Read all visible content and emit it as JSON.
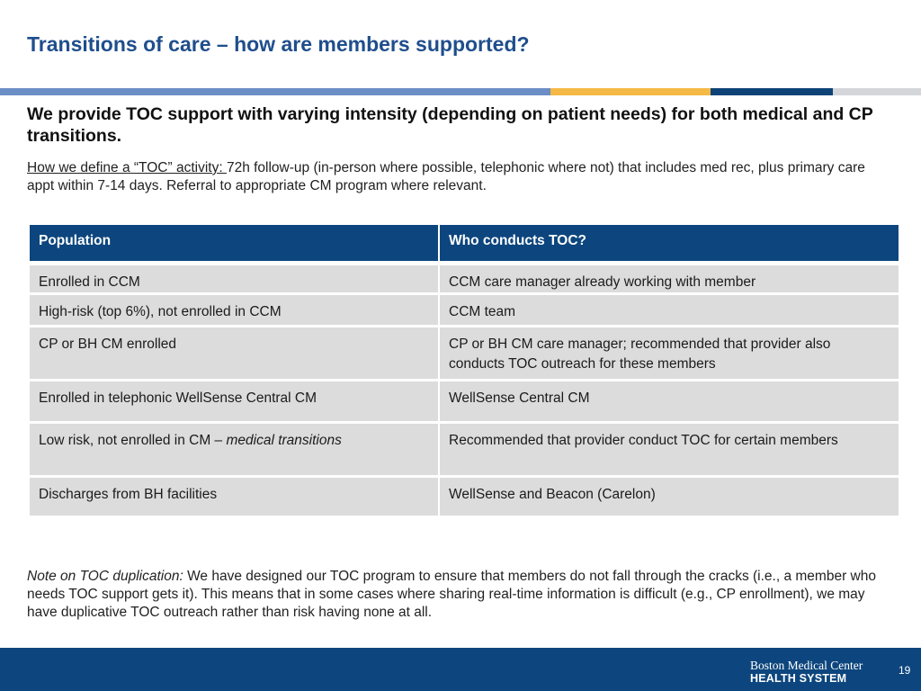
{
  "slide": {
    "title": "Transitions of care – how are members supported?",
    "headline": "We provide TOC support with varying intensity (depending on patient needs) for both medical and CP transitions.",
    "definition": {
      "lead": "How we define a “TOC” activity: ",
      "text": "72h follow-up (in-person where possible, telephonic where not) that includes med rec, plus primary care appt within 7-14 days. Referral to appropriate CM program where relevant."
    },
    "table": {
      "headers": [
        "Population",
        "Who conducts TOC?"
      ],
      "rows": [
        {
          "population": "Enrolled in CCM",
          "population_italic": "",
          "who": "CCM care manager already working with member"
        },
        {
          "population": "High-risk (top 6%), not enrolled in CCM",
          "population_italic": "",
          "who": "CCM team"
        },
        {
          "population": "CP or BH CM enrolled",
          "population_italic": "",
          "who": "CP or BH CM care manager; recommended that provider also conducts TOC outreach for these members"
        },
        {
          "population": "Enrolled in telephonic WellSense Central CM",
          "population_italic": "",
          "who": "WellSense Central CM"
        },
        {
          "population": "Low risk, not enrolled in CM – ",
          "population_italic": "medical transitions",
          "who": "Recommended that provider conduct TOC for certain members"
        },
        {
          "population": "Discharges from BH facilities",
          "population_italic": "",
          "who": "WellSense and Beacon (Carelon)"
        }
      ]
    },
    "note": {
      "lead": "Note on TOC duplication:",
      "text": " We have designed our TOC program to ensure that members do not fall through the cracks (i.e., a member who needs TOC support gets it). This means that in some cases where sharing real-time information is difficult (e.g., CP enrollment), we may have duplicative TOC outreach rather than risk having none at all."
    },
    "footer": {
      "logo_line1": "Boston Medical Center",
      "logo_line2": "HEALTH SYSTEM",
      "page_number": "19"
    },
    "colors": {
      "title": "#1f4e8c",
      "header_bg": "#0d467e",
      "cell_bg": "#dcdcdc",
      "accent_blue": "#6c8ec6",
      "accent_gold": "#f5b945",
      "accent_navy": "#0f4377",
      "accent_gray": "#d4d6da"
    }
  }
}
